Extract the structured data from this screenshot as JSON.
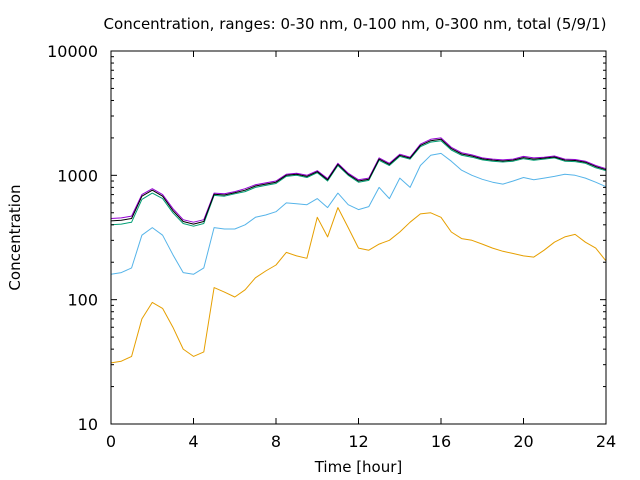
{
  "chart_data": {
    "type": "line",
    "title": "Concentration, ranges: 0-30 nm, 0-100 nm, 0-300 nm, total (5/9/1)",
    "xlabel": "Time [hour]",
    "ylabel": "Concentration",
    "xlim": [
      0,
      24
    ],
    "ylim": [
      10,
      10000
    ],
    "y_scale": "log",
    "grid": false,
    "legend": "none",
    "x_ticks": [
      0,
      4,
      8,
      12,
      16,
      20,
      24
    ],
    "y_ticks": [
      10,
      100,
      1000,
      10000
    ],
    "x_tick_labels": [
      "0",
      "4",
      "8",
      "12",
      "16",
      "20",
      "24"
    ],
    "y_tick_labels": [
      "10",
      "100",
      "1000",
      "10000"
    ],
    "x": [
      0,
      0.5,
      1,
      1.5,
      2,
      2.5,
      3,
      3.5,
      4,
      4.5,
      5,
      5.5,
      6,
      6.5,
      7,
      7.5,
      8,
      8.5,
      9,
      9.5,
      10,
      10.5,
      11,
      11.5,
      12,
      12.5,
      13,
      13.5,
      14,
      14.5,
      15,
      15.5,
      16,
      16.5,
      17,
      17.5,
      18,
      18.5,
      19,
      19.5,
      20,
      20.5,
      21,
      21.5,
      22,
      22.5,
      23,
      23.5,
      24
    ],
    "series": [
      {
        "color": "#e69f00",
        "values": [
          31,
          32,
          35,
          70,
          95,
          85,
          60,
          40,
          35,
          38,
          125,
          115,
          105,
          120,
          150,
          170,
          190,
          240,
          225,
          215,
          460,
          320,
          550,
          380,
          260,
          250,
          280,
          300,
          350,
          420,
          490,
          500,
          460,
          350,
          310,
          300,
          280,
          260,
          245,
          235,
          225,
          220,
          250,
          290,
          320,
          335,
          290,
          260,
          205
        ]
      },
      {
        "color": "#56b4e9",
        "values": [
          160,
          165,
          180,
          330,
          380,
          330,
          230,
          165,
          160,
          180,
          380,
          370,
          370,
          400,
          460,
          480,
          510,
          600,
          590,
          580,
          650,
          550,
          720,
          580,
          530,
          560,
          800,
          650,
          950,
          800,
          1200,
          1450,
          1500,
          1300,
          1100,
          1000,
          930,
          880,
          850,
          900,
          960,
          920,
          950,
          980,
          1020,
          1000,
          950,
          880,
          810
        ]
      },
      {
        "color": "#009e73",
        "values": [
          400,
          405,
          420,
          640,
          720,
          650,
          500,
          410,
          390,
          410,
          690,
          680,
          710,
          740,
          800,
          830,
          860,
          980,
          1000,
          960,
          1050,
          900,
          1200,
          1000,
          880,
          910,
          1320,
          1200,
          1420,
          1350,
          1700,
          1850,
          1900,
          1600,
          1450,
          1400,
          1330,
          1300,
          1280,
          1300,
          1360,
          1320,
          1350,
          1380,
          1300,
          1290,
          1250,
          1150,
          1090
        ]
      },
      {
        "color": "#9400d3",
        "values": [
          450,
          455,
          470,
          700,
          780,
          700,
          540,
          440,
          420,
          440,
          720,
          710,
          740,
          780,
          840,
          870,
          900,
          1020,
          1040,
          1000,
          1090,
          940,
          1250,
          1040,
          920,
          950,
          1380,
          1250,
          1480,
          1400,
          1780,
          1950,
          2000,
          1680,
          1520,
          1460,
          1380,
          1350,
          1330,
          1350,
          1420,
          1380,
          1400,
          1430,
          1350,
          1340,
          1300,
          1200,
          1130
        ]
      },
      {
        "color": "#000000",
        "values": [
          430,
          435,
          450,
          680,
          760,
          680,
          520,
          425,
          405,
          425,
          705,
          695,
          725,
          760,
          820,
          850,
          880,
          1000,
          1020,
          980,
          1070,
          920,
          1225,
          1020,
          900,
          930,
          1350,
          1225,
          1450,
          1375,
          1740,
          1900,
          1950,
          1640,
          1485,
          1430,
          1355,
          1325,
          1305,
          1325,
          1390,
          1350,
          1375,
          1405,
          1325,
          1315,
          1275,
          1175,
          1110
        ]
      }
    ]
  }
}
